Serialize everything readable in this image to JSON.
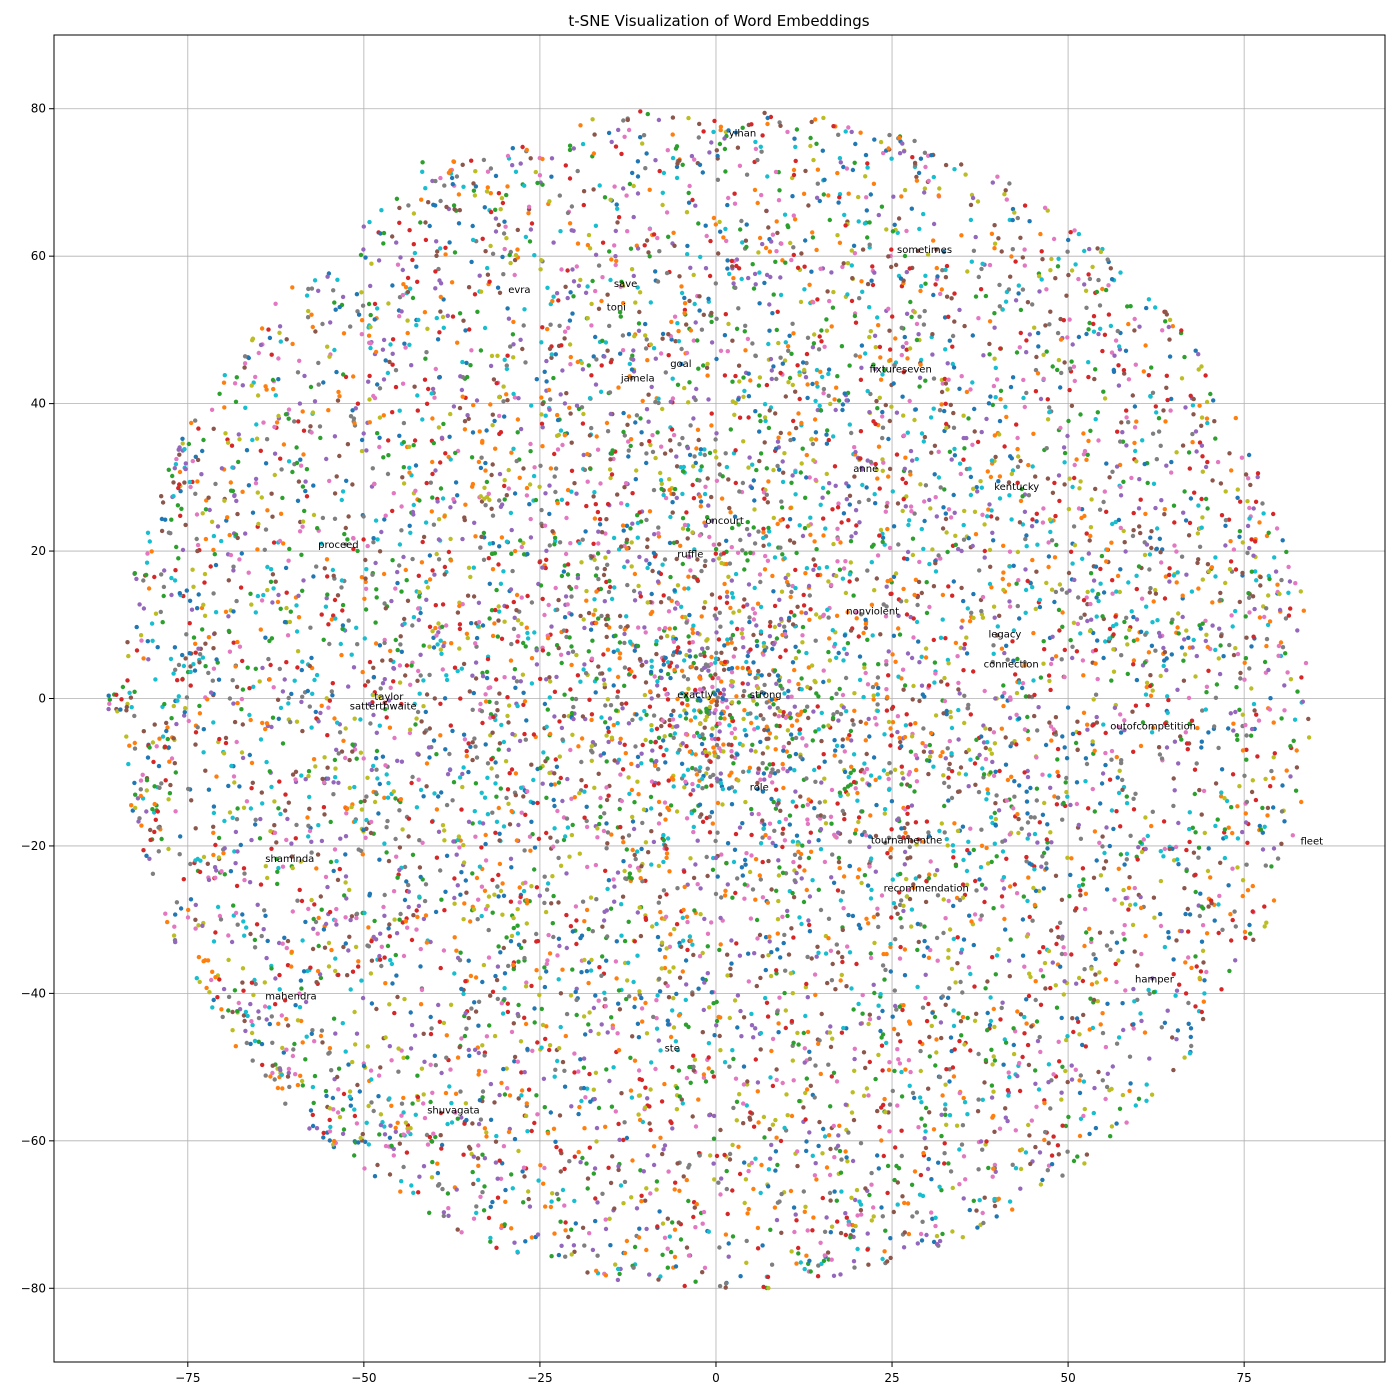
{
  "chart_data": {
    "type": "scatter",
    "title": "t-SNE Visualization of Word Embeddings",
    "xlabel": "",
    "ylabel": "",
    "xlim": [
      -94,
      95
    ],
    "ylim": [
      -90,
      90
    ],
    "grid": true,
    "legend": "none",
    "x_ticks": [
      -75,
      -50,
      -25,
      0,
      25,
      50,
      75
    ],
    "y_ticks": [
      -80,
      -60,
      -40,
      -20,
      0,
      20,
      40,
      60,
      80
    ],
    "x_tick_labels": [
      "−75",
      "−50",
      "−25",
      "0",
      "25",
      "50",
      "75"
    ],
    "y_tick_labels": [
      "−80",
      "−60",
      "−40",
      "−20",
      "0",
      "20",
      "40",
      "60",
      "80"
    ],
    "point_colors": [
      "#1f77b4",
      "#ff7f0e",
      "#2ca02c",
      "#d62728",
      "#9467bd",
      "#8c564b",
      "#e377c2",
      "#7f7f7f",
      "#bcbd22",
      "#17becf"
    ],
    "point_count_approx": 9000,
    "point_distribution": "disc centered near (0, 0) with radius about 85, denser toward the center, with sparse small clusters at the left edge",
    "annotations": [
      {
        "text": "yihan",
        "x": 1.8,
        "y": 76.2
      },
      {
        "text": "sometimes",
        "x": 25.7,
        "y": 60.4
      },
      {
        "text": "evra",
        "x": -29.5,
        "y": 55.0
      },
      {
        "text": "save",
        "x": -14.5,
        "y": 55.8
      },
      {
        "text": "toni",
        "x": -15.5,
        "y": 52.6
      },
      {
        "text": "goal",
        "x": -6.5,
        "y": 45.0
      },
      {
        "text": "jamela",
        "x": -13.5,
        "y": 43.0
      },
      {
        "text": "fixtureseven",
        "x": 21.8,
        "y": 44.2
      },
      {
        "text": "anne",
        "x": 19.5,
        "y": 30.7
      },
      {
        "text": "kentucky",
        "x": 39.5,
        "y": 28.3
      },
      {
        "text": "oncourt",
        "x": -1.5,
        "y": 23.7
      },
      {
        "text": "proceed",
        "x": -56.5,
        "y": 20.4
      },
      {
        "text": "ruffle",
        "x": -5.5,
        "y": 19.1
      },
      {
        "text": "nonviolent",
        "x": 18.5,
        "y": 11.4
      },
      {
        "text": "legacy",
        "x": 38.7,
        "y": 8.3
      },
      {
        "text": "connection",
        "x": 38.0,
        "y": 4.2
      },
      {
        "text": "taylor",
        "x": -48.5,
        "y": -0.2
      },
      {
        "text": "satterthwaite",
        "x": -52.0,
        "y": -1.5
      },
      {
        "text": "exactly",
        "x": -5.5,
        "y": 0.1
      },
      {
        "text": "strong",
        "x": 4.8,
        "y": 0.1
      },
      {
        "text": "outofcompetition",
        "x": 56.0,
        "y": -4.2
      },
      {
        "text": "role",
        "x": 4.8,
        "y": -12.5
      },
      {
        "text": "tournamenthe",
        "x": 22.0,
        "y": -19.7
      },
      {
        "text": "fleet",
        "x": 83.0,
        "y": -19.8
      },
      {
        "text": "shaminda",
        "x": -64.0,
        "y": -22.2
      },
      {
        "text": "recommendation",
        "x": 23.8,
        "y": -26.2
      },
      {
        "text": "hamper",
        "x": 59.5,
        "y": -38.5
      },
      {
        "text": "mahendra",
        "x": -64.0,
        "y": -40.8
      },
      {
        "text": "ste",
        "x": -7.3,
        "y": -47.9
      },
      {
        "text": "shuvagata",
        "x": -41.0,
        "y": -56.3
      }
    ]
  }
}
